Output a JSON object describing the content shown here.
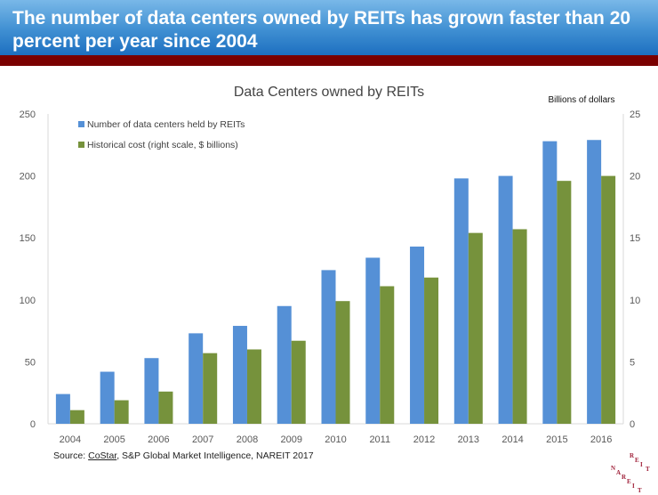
{
  "header": {
    "title": "The number of data centers owned by REITs has grown faster than 20 percent per year since 2004"
  },
  "colors": {
    "banner": "#3f8fd2",
    "accent_bar": "#7a0000",
    "series_blue": "#5590d6",
    "series_green": "#76923c"
  },
  "source": {
    "prefix": "Source: ",
    "link": "CoStar",
    "rest": ", S&P Global Market Intelligence, NAREIT 2017"
  },
  "logo": {
    "text": "REIT NAREIT"
  },
  "chart_data": {
    "type": "bar",
    "title": "Data Centers owned by REITs",
    "y2label": "Billions of dollars",
    "categories": [
      "2004",
      "2005",
      "2006",
      "2007",
      "2008",
      "2009",
      "2010",
      "2011",
      "2012",
      "2013",
      "2014",
      "2015",
      "2016"
    ],
    "ylim": [
      0,
      250
    ],
    "yticks": [
      0,
      50,
      100,
      150,
      200,
      250
    ],
    "y2lim": [
      0,
      25
    ],
    "y2ticks": [
      0,
      5,
      10,
      15,
      20,
      25
    ],
    "legend_position": "top-left",
    "grid": false,
    "series": [
      {
        "name": "Number of data centers held by REITs",
        "axis": "left",
        "color": "#5590d6",
        "values": [
          24,
          42,
          53,
          73,
          79,
          95,
          124,
          134,
          143,
          198,
          200,
          228,
          229
        ]
      },
      {
        "name": "Historical cost (right scale, $ billions)",
        "axis": "right",
        "color": "#76923c",
        "values": [
          1.1,
          1.9,
          2.6,
          5.7,
          6.0,
          6.7,
          9.9,
          11.1,
          11.8,
          15.4,
          15.7,
          19.6,
          20.0
        ]
      }
    ]
  }
}
